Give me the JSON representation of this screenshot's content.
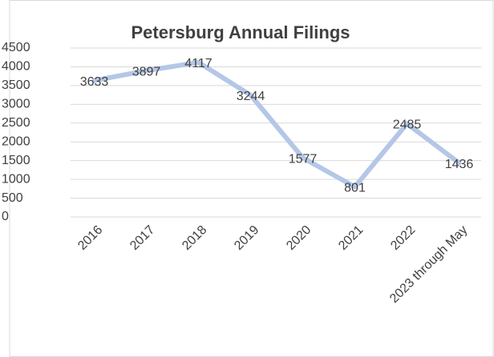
{
  "chart_data": {
    "type": "line",
    "title": "Petersburg Annual Filings",
    "categories": [
      "2016",
      "2017",
      "2018",
      "2019",
      "2020",
      "2021",
      "2022",
      "2023 through May"
    ],
    "values": [
      3633,
      3897,
      4117,
      3244,
      1577,
      801,
      2485,
      1436
    ],
    "color": "#b4c7e7",
    "ylim": [
      0,
      4500
    ],
    "yticks": [
      0,
      500,
      1000,
      1500,
      2000,
      2500,
      3000,
      3500,
      4000,
      4500
    ],
    "grid": true
  }
}
